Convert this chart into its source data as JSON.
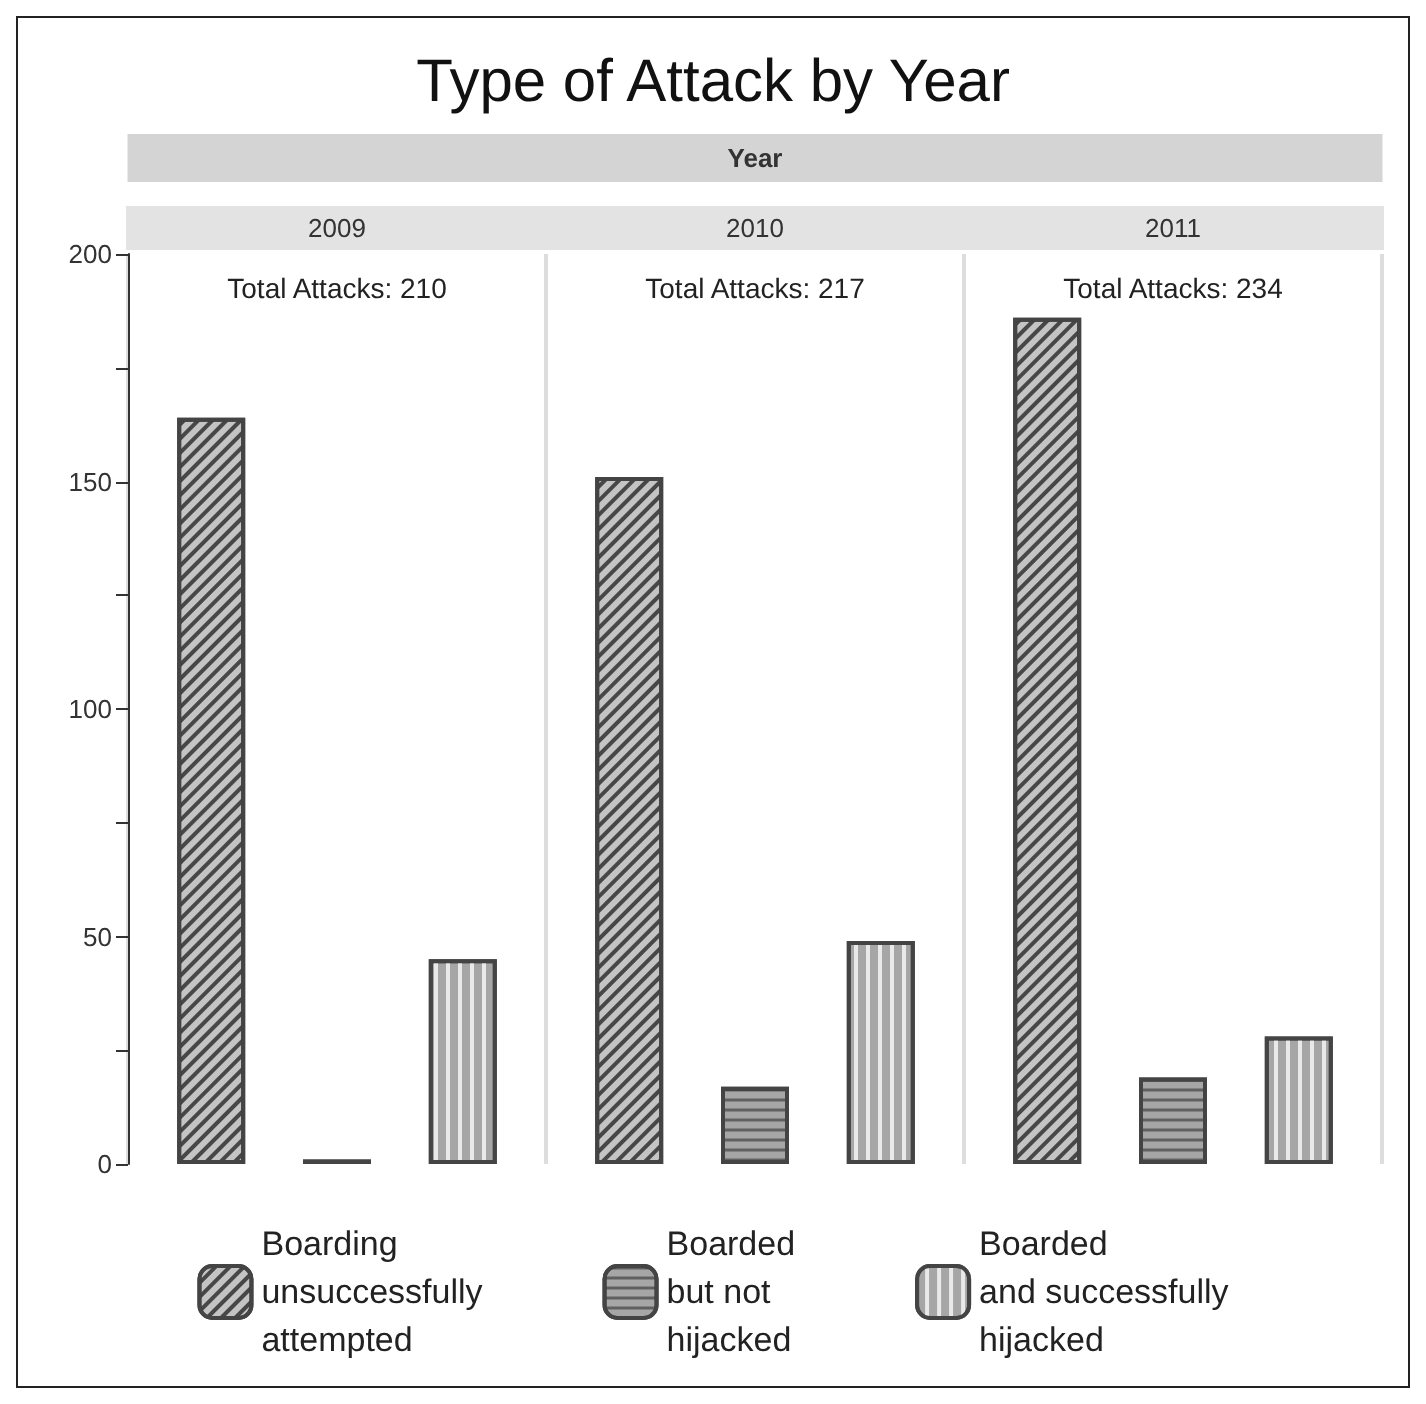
{
  "chart_data": {
    "type": "bar",
    "title": "Type of Attack by Year",
    "xlabel": "Year",
    "categories": [
      "2009",
      "2010",
      "2011"
    ],
    "series": [
      {
        "name": "Boarding\nunsuccessfully\nattempted",
        "color": "#c4c4c4",
        "values": [
          164,
          151,
          186
        ]
      },
      {
        "name": "Boarded\nbut not\nhijacked",
        "color": "#a6a6a6",
        "values": [
          1,
          17,
          19
        ]
      },
      {
        "name": "Boarded\nand successfully\nhijacked",
        "color": "#a6a6a6",
        "values": [
          45,
          49,
          28
        ]
      }
    ],
    "annotations": [
      "Total Attacks: 210",
      "Total Attacks: 217",
      "Total Attacks: 234"
    ],
    "ylim": [
      0,
      200
    ],
    "yticks": [
      0,
      {
        "value": 25,
        "label": null
      },
      50,
      {
        "value": 75,
        "label": null
      },
      100,
      {
        "value": 125,
        "label": null
      },
      150,
      {
        "value": 175,
        "label": null
      },
      200
    ],
    "grid": false,
    "legend": "bottom"
  }
}
